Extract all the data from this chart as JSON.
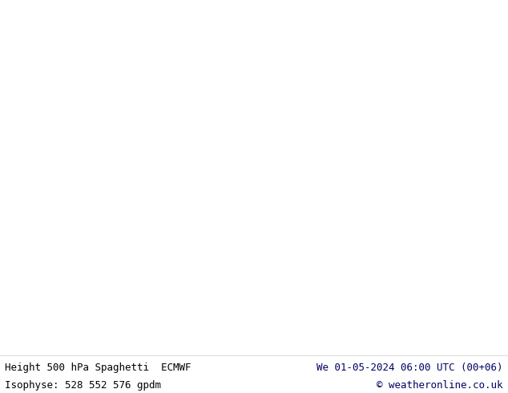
{
  "title_left": "Height 500 hPa Spaghetti  ECMWF",
  "title_right": "We 01-05-2024 06:00 UTC (00+06)",
  "subtitle_left": "Isophyse: 528 552 576 gpdm",
  "subtitle_right": "© weatheronline.co.uk",
  "bg_color": "#e8e8e8",
  "map_bg_color": "#d8d8d8",
  "land_color": "#ccffcc",
  "ocean_color": "#d8d8d8",
  "footer_bg": "#ffffff",
  "text_color": "#000000",
  "text_color_right": "#000066",
  "font_size": 9,
  "figsize": [
    6.34,
    4.9
  ],
  "dpi": 100
}
